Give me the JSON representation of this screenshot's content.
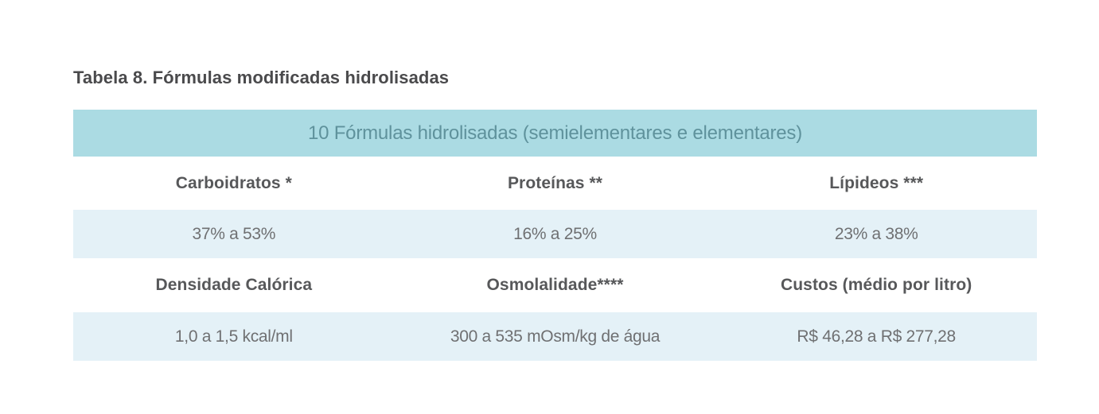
{
  "title": "Tabela 8. Fórmulas modificadas hidrolisadas",
  "table": {
    "header": "10 Fórmulas hidrolisadas (semielementares e elementares)",
    "rows": [
      {
        "type": "labels",
        "cells": [
          "Carboidratos *",
          "Proteínas **",
          "Lípideos ***"
        ]
      },
      {
        "type": "values",
        "cells": [
          "37% a 53%",
          "16% a 25%",
          "23% a 38%"
        ]
      },
      {
        "type": "labels",
        "cells": [
          "Densidade Calórica",
          "Osmolalidade****",
          "Custos (médio por litro)"
        ]
      },
      {
        "type": "values",
        "cells": [
          "1,0 a 1,5 kcal/ml",
          "300 a 535 mOsm/kg de água",
          "R$ 46,28 a R$ 277,28"
        ]
      }
    ]
  },
  "theme": {
    "page_bg": "#ffffff",
    "title_color": "#4a4a4c",
    "band_bg": "#abdbe3",
    "band_text": "#5f929c",
    "alt_row_bg": "#e4f1f7",
    "label_color": "#57585a",
    "value_color": "#6f7072"
  }
}
